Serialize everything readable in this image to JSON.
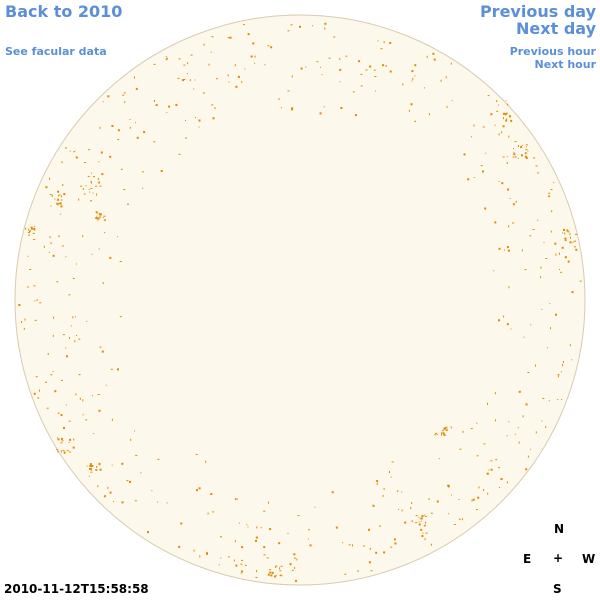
{
  "nav": {
    "back_label": "Back to 2010",
    "facular_label": "See facular data",
    "prev_day_label": "Previous day",
    "next_day_label": "Next day",
    "prev_hour_label": "Previous hour",
    "next_hour_label": "Next hour"
  },
  "timestamp": "2010-11-12T15:58:58",
  "compass": {
    "north": "N",
    "east": "E",
    "center": "+",
    "west": "W",
    "south": "S"
  },
  "colors": {
    "link": "#5b8fd8",
    "disk_fill": "#fdf8ec",
    "disk_edge": "#d9cbb0",
    "facula": "#e08a00"
  }
}
